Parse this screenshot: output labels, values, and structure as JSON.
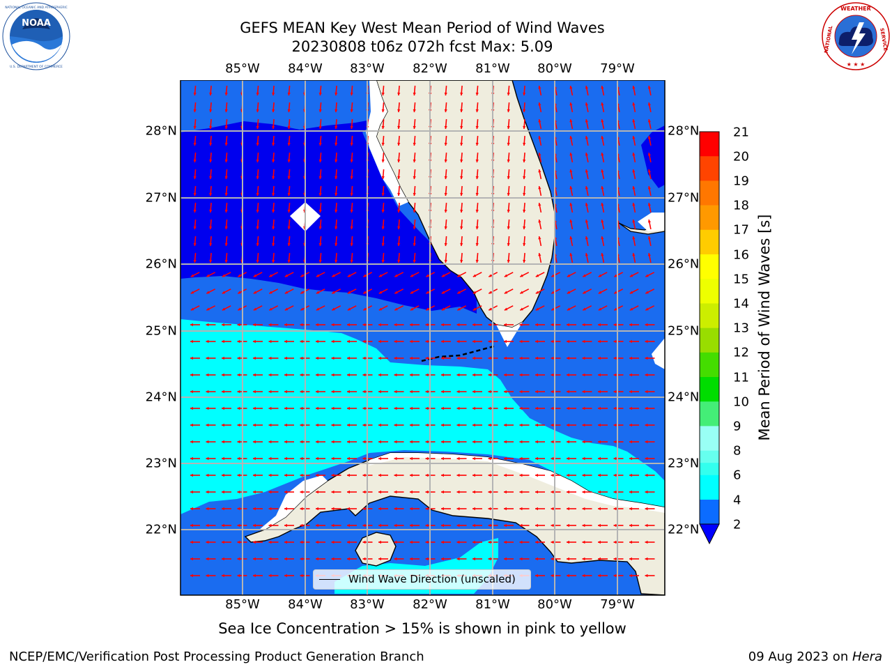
{
  "title_line1": "GEFS MEAN Key West Mean Period of Wind Waves",
  "title_line2": "20230808 t06z 072h fcst   Max: 5.09",
  "logos": {
    "left": "NOAA",
    "left_ring_text": "NATIONAL OCEANIC AND ATMOSPHERIC ADMINISTRATION · U.S. DEPARTMENT OF COMMERCE",
    "right_ring_text": "NATIONAL WEATHER SERVICE"
  },
  "map": {
    "lon_labels": [
      "85°W",
      "84°W",
      "83°W",
      "82°W",
      "81°W",
      "80°W",
      "79°W"
    ],
    "lat_labels": [
      "28°N",
      "27°N",
      "26°N",
      "25°N",
      "24°N",
      "23°N",
      "22°N"
    ],
    "legend_label": "Wind Wave Direction (unscaled)"
  },
  "colorbar": {
    "label": "Mean Period of Wind Waves [s]",
    "ticks": [
      "21",
      "20",
      "19",
      "18",
      "17",
      "16",
      "15",
      "14",
      "13",
      "12",
      "11",
      "10",
      "9",
      "8",
      "6",
      "4",
      "2"
    ],
    "colors": {
      "band_2_4": "#0b6cff",
      "band_4_6": "#00ffff",
      "band_6_7": "#33ffee",
      "band_7_8": "#66ffee",
      "band_8_9": "#99fff5",
      "band_9_10": "#44ee77",
      "band_10_11": "#00dd00",
      "band_11_12": "#44dd00",
      "band_12_13": "#99dd00",
      "band_13_14": "#ccee00",
      "band_14_15": "#eeff00",
      "band_15_16": "#ffff00",
      "band_16_17": "#ffcc00",
      "band_17_18": "#ff9900",
      "band_18_19": "#ff7700",
      "band_19_20": "#ff4400",
      "band_20_21": "#ff0000",
      "under": "#0000ff"
    }
  },
  "colors": {
    "deep_blue": "#0000ee",
    "mid_blue": "#1a6cf0",
    "cyan": "#00ffff",
    "land": "#efedde",
    "arrow": "#ff0000",
    "grid": "#b4b4b4"
  },
  "sea_ice_note": "Sea Ice Concentration > 15% is shown in pink to yellow",
  "footer_left": "NCEP/EMC/Verification Post Processing Product Generation Branch",
  "footer_date": "09 Aug 2023 on ",
  "footer_machine": "Hera"
}
